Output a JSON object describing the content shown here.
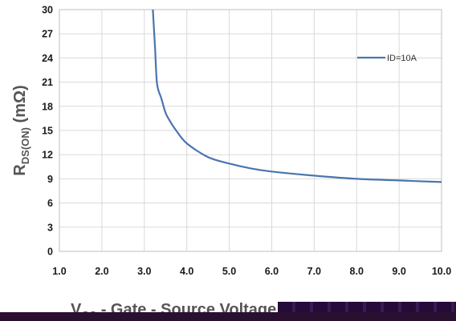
{
  "chart_data": {
    "type": "line",
    "title": "",
    "ylabel": {
      "main": "R",
      "sub": "DS(ON)",
      "unit": " (mΩ)"
    },
    "xlabel": {
      "prefix": "V",
      "sub": "GS",
      "text": " - Gate - Source Voltage"
    },
    "xlim": [
      1.0,
      10.0
    ],
    "ylim": [
      0,
      30
    ],
    "xticks": [
      "1.0",
      "2.0",
      "3.0",
      "4.0",
      "5.0",
      "6.0",
      "7.0",
      "8.0",
      "9.0",
      "10.0"
    ],
    "yticks": [
      "0",
      "3",
      "6",
      "9",
      "12",
      "15",
      "18",
      "21",
      "24",
      "27",
      "30"
    ],
    "grid": true,
    "legend_position": "top-right",
    "series": [
      {
        "name": "ID=10A",
        "color": "#4a74b0",
        "x": [
          3.2,
          3.25,
          3.3,
          3.4,
          3.5,
          3.6,
          3.75,
          4.0,
          4.5,
          5.0,
          5.5,
          6.0,
          7.0,
          8.0,
          9.0,
          10.0
        ],
        "y": [
          30,
          25.5,
          20.8,
          19.0,
          17.2,
          16.2,
          15.0,
          13.4,
          11.7,
          10.9,
          10.3,
          9.9,
          9.4,
          9.0,
          8.8,
          8.6
        ]
      }
    ]
  }
}
